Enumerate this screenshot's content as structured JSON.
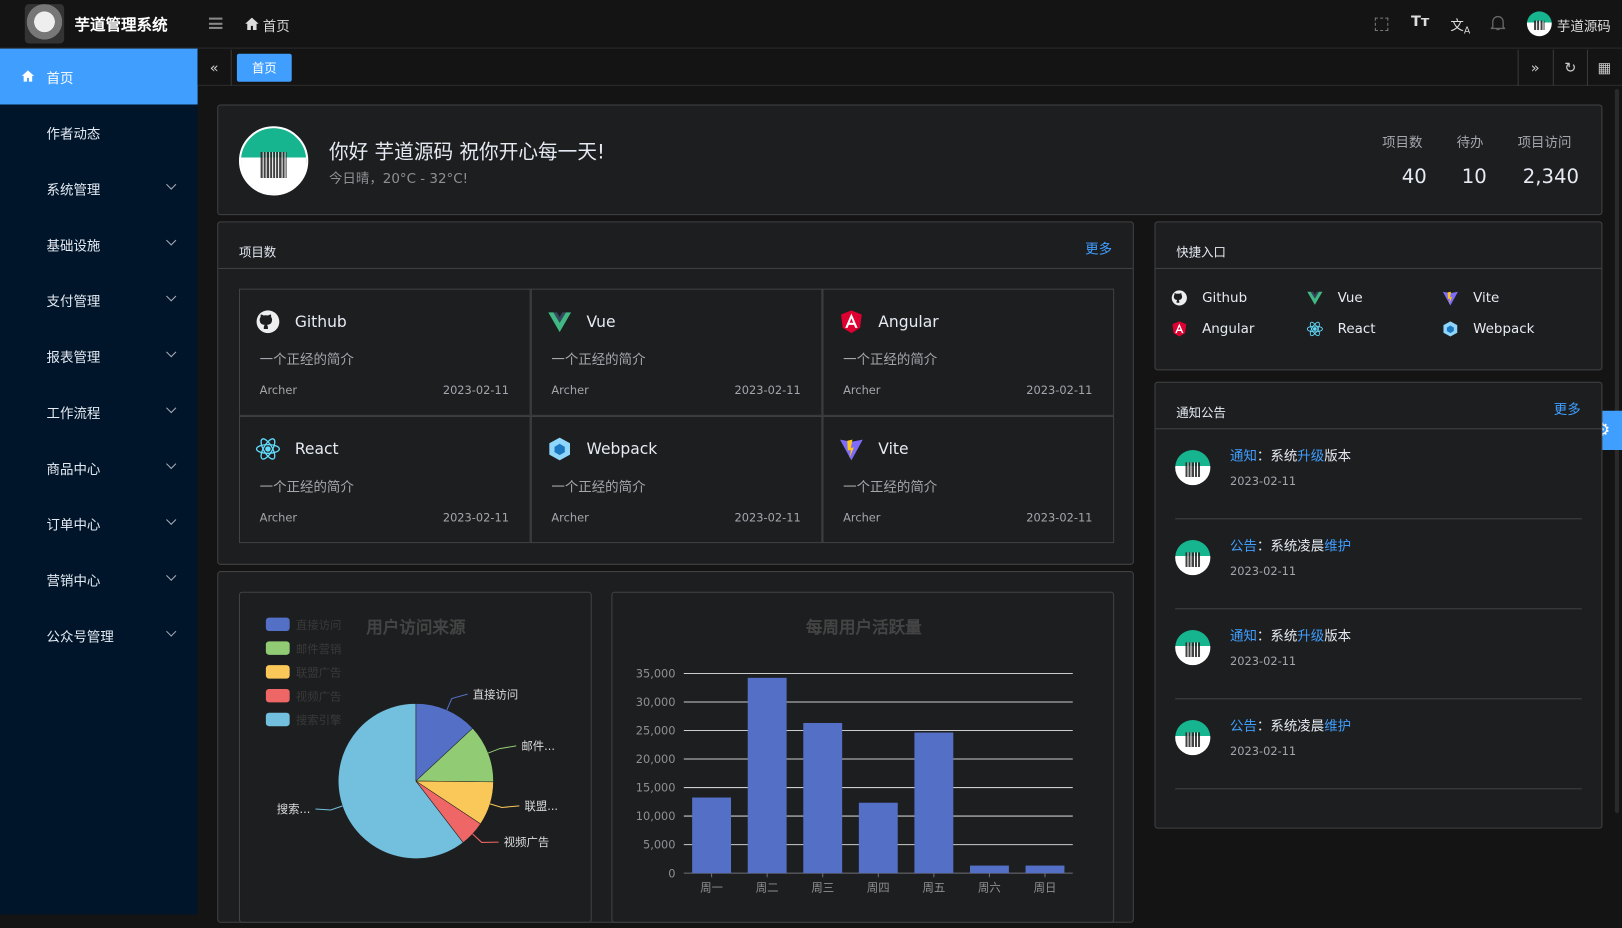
{
  "app": {
    "title": "芋道管理系统",
    "breadcrumb": "首页",
    "user": "芋道源码"
  },
  "header_icons": [
    "fullscreen-icon",
    "font-size-icon",
    "translate-icon",
    "bell-icon"
  ],
  "sidebar": {
    "items": [
      {
        "label": "首页",
        "active": true
      },
      {
        "label": "作者动态"
      },
      {
        "label": "系统管理",
        "submenu": true
      },
      {
        "label": "基础设施",
        "submenu": true
      },
      {
        "label": "支付管理",
        "submenu": true
      },
      {
        "label": "报表管理",
        "submenu": true
      },
      {
        "label": "工作流程",
        "submenu": true
      },
      {
        "label": "商品中心",
        "submenu": true
      },
      {
        "label": "订单中心",
        "submenu": true
      },
      {
        "label": "营销中心",
        "submenu": true
      },
      {
        "label": "公众号管理",
        "submenu": true
      }
    ]
  },
  "tabs": {
    "active": "首页"
  },
  "welcome": {
    "greeting": "你好 芋道源码 祝你开心每一天!",
    "weather": "今日晴，20°C - 32°C!",
    "stats": [
      {
        "label": "项目数",
        "value": "40"
      },
      {
        "label": "待办",
        "value": "10"
      },
      {
        "label": "项目访问",
        "value": "2,340"
      }
    ]
  },
  "projects": {
    "title": "项目数",
    "more": "更多",
    "items": [
      {
        "name": "Github",
        "icon": "github-icon",
        "desc": "一个正经的简介",
        "author": "Archer",
        "date": "2023-02-11"
      },
      {
        "name": "Vue",
        "icon": "vue-icon",
        "desc": "一个正经的简介",
        "author": "Archer",
        "date": "2023-02-11"
      },
      {
        "name": "Angular",
        "icon": "angular-icon",
        "desc": "一个正经的简介",
        "author": "Archer",
        "date": "2023-02-11"
      },
      {
        "name": "React",
        "icon": "react-icon",
        "desc": "一个正经的简介",
        "author": "Archer",
        "date": "2023-02-11"
      },
      {
        "name": "Webpack",
        "icon": "webpack-icon",
        "desc": "一个正经的简介",
        "author": "Archer",
        "date": "2023-02-11"
      },
      {
        "name": "Vite",
        "icon": "vite-icon",
        "desc": "一个正经的简介",
        "author": "Archer",
        "date": "2023-02-11"
      }
    ]
  },
  "shortcuts": {
    "title": "快捷入口",
    "items": [
      {
        "name": "Github",
        "icon": "github-icon"
      },
      {
        "name": "Vue",
        "icon": "vue-icon"
      },
      {
        "name": "Vite",
        "icon": "vite-icon"
      },
      {
        "name": "Angular",
        "icon": "angular-icon"
      },
      {
        "name": "React",
        "icon": "react-icon"
      },
      {
        "name": "Webpack",
        "icon": "webpack-icon"
      }
    ]
  },
  "notices": {
    "title": "通知公告",
    "more": "更多",
    "items": [
      {
        "type": "通知",
        "pre": "：系统",
        "kw": "升级",
        "post": "版本",
        "date": "2023-02-11"
      },
      {
        "type": "公告",
        "pre": "：系统凌晨",
        "kw": "维护",
        "post": "",
        "date": "2023-02-11"
      },
      {
        "type": "通知",
        "pre": "：系统",
        "kw": "升级",
        "post": "版本",
        "date": "2023-02-11"
      },
      {
        "type": "公告",
        "pre": "：系统凌晨",
        "kw": "维护",
        "post": "",
        "date": "2023-02-11"
      }
    ]
  },
  "chart_data": [
    {
      "type": "pie",
      "title": "用户访问来源",
      "legend_position": "top-left",
      "categories": [
        "直接访问",
        "邮件营销",
        "联盟广告",
        "视频广告",
        "搜索引擎"
      ],
      "labels": [
        "直接访问",
        "邮件...",
        "联盟...",
        "视频广告",
        "搜索..."
      ],
      "values": [
        335,
        310,
        234,
        135,
        1548
      ],
      "colors": [
        "#5470c6",
        "#91cc75",
        "#fac858",
        "#ee6666",
        "#73c0de"
      ]
    },
    {
      "type": "bar",
      "title": "每周用户活跃量",
      "categories": [
        "周一",
        "周二",
        "周三",
        "周四",
        "周五",
        "周六",
        "周日"
      ],
      "values": [
        13253,
        34235,
        26321,
        12340,
        24643,
        1322,
        1324
      ],
      "ylim": [
        0,
        35000
      ],
      "yticks": [
        "0",
        "5,000",
        "10,000",
        "15,000",
        "20,000",
        "25,000",
        "30,000",
        "35,000"
      ],
      "grid": true,
      "color": "#5470c6"
    }
  ]
}
